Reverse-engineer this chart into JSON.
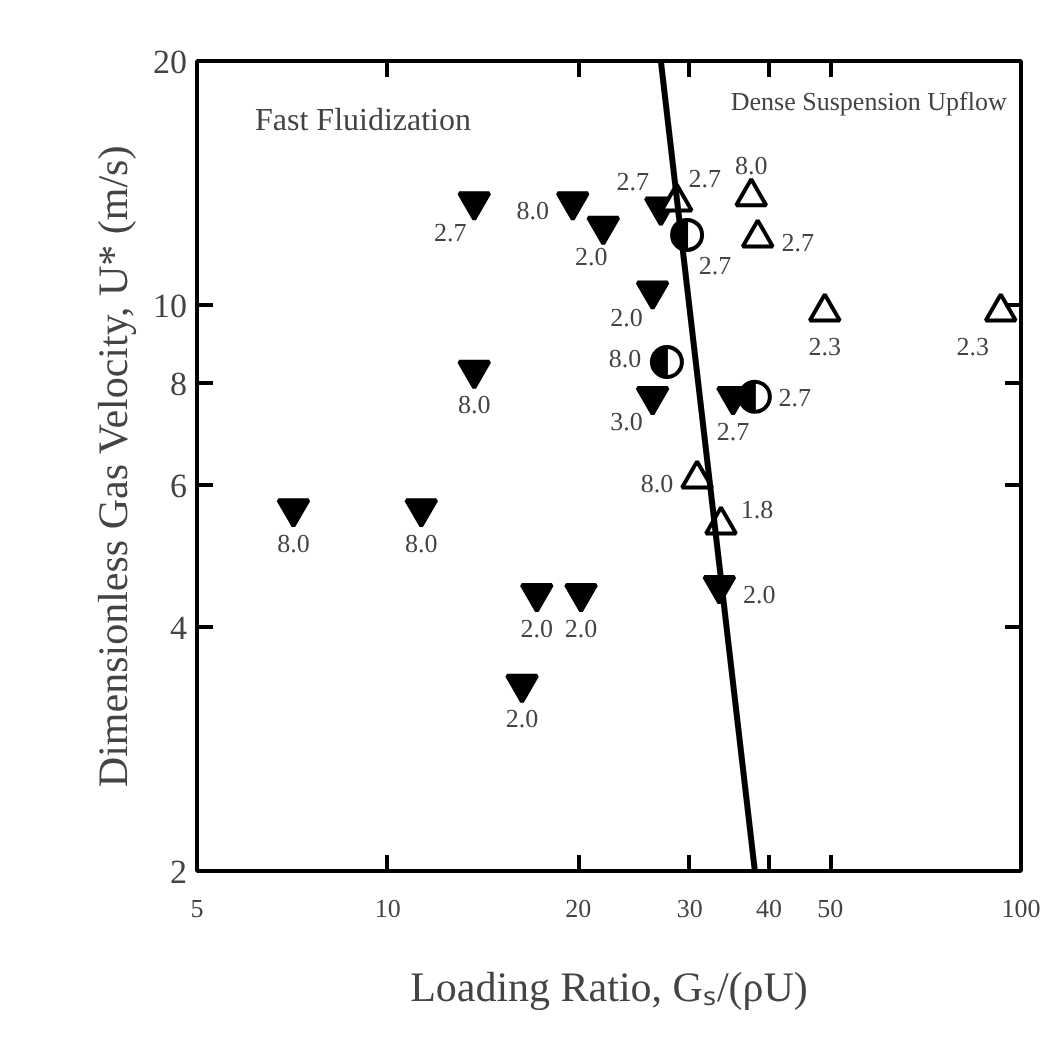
{
  "chart_data": {
    "type": "scatter",
    "xlabel": "Loading Ratio, Gₛ/(ρU)",
    "ylabel": "Dimensionless Gas Velocity, U* (m/s)",
    "log": "xy",
    "xlim": [
      5,
      100
    ],
    "ylim": [
      2,
      20
    ],
    "xticks": [
      5,
      10,
      20,
      30,
      40,
      50,
      100
    ],
    "yticks": [
      2,
      4,
      6,
      8,
      10,
      20
    ],
    "grid": false,
    "annotations": [
      "Fast Fluidization",
      "Dense Suspension Upflow",
      {
        "text": "2.7",
        "x": 13.7,
        "y": 13.4
      },
      {
        "text": "8.0",
        "x": 13.7,
        "y": 8.3
      },
      {
        "text": "8.0",
        "x": 7.1,
        "y": 5.6
      },
      {
        "text": "8.0",
        "x": 11.3,
        "y": 5.6
      },
      {
        "text": "2.0",
        "x": 17.2,
        "y": 4.4
      },
      {
        "text": "2.0",
        "x": 20.2,
        "y": 4.4
      },
      {
        "text": "2.0",
        "x": 16.3,
        "y": 3.4
      },
      {
        "text": "8.0",
        "x": 19.6,
        "y": 13.4
      },
      {
        "text": "2.0",
        "x": 21.9,
        "y": 12.5
      },
      {
        "text": "2.7",
        "x": 27.0,
        "y": 13.2
      },
      {
        "text": "2.0",
        "x": 26.2,
        "y": 10.4
      },
      {
        "text": "3.0",
        "x": 26.2,
        "y": 7.7
      },
      {
        "text": "2.7",
        "x": 35.1,
        "y": 7.7
      },
      {
        "text": "2.0",
        "x": 33.4,
        "y": 4.5
      },
      {
        "text": "2.7",
        "x": 28.6,
        "y": 13.4
      },
      {
        "text": "8.0",
        "x": 37.5,
        "y": 13.6
      },
      {
        "text": "2.7",
        "x": 38.4,
        "y": 12.1
      },
      {
        "text": "2.3",
        "x": 49.0,
        "y": 9.8
      },
      {
        "text": "2.3",
        "x": 92.9,
        "y": 9.8
      },
      {
        "text": "8.0",
        "x": 30.8,
        "y": 6.1
      },
      {
        "text": "1.8",
        "x": 33.6,
        "y": 5.35
      },
      {
        "text": "2.7",
        "x": 29.7,
        "y": 12.2
      },
      {
        "text": "8.0",
        "x": 27.6,
        "y": 8.5
      },
      {
        "text": "2.7",
        "x": 38.0,
        "y": 7.7
      }
    ],
    "series": [
      {
        "color": "#000000",
        "marker": "triangle",
        "x": [
          13.7,
          13.7,
          7.1,
          11.3,
          17.2,
          20.2,
          16.3,
          19.6,
          21.9,
          27.0,
          26.2,
          26.2,
          35.1,
          33.4
        ],
        "values": [
          13.4,
          8.3,
          5.6,
          5.6,
          4.4,
          4.4,
          3.4,
          13.4,
          12.5,
          13.2,
          10.4,
          7.7,
          7.7,
          4.5
        ]
      },
      {
        "color": "#000000",
        "marker": "triangle",
        "x": [
          28.6,
          37.5,
          38.4,
          49.0,
          92.9,
          30.8,
          33.6
        ],
        "values": [
          13.4,
          13.6,
          12.1,
          9.8,
          9.8,
          6.1,
          5.35
        ]
      },
      {
        "color": "#000000",
        "marker": "circle",
        "x": [
          29.7,
          27.6,
          38.0
        ],
        "values": [
          12.2,
          8.5,
          7.7
        ]
      },
      {
        "type": "line",
        "color": "#000000",
        "line_style": "solid",
        "x": [
          27.0,
          38.0
        ],
        "values": [
          20,
          2
        ]
      }
    ]
  }
}
